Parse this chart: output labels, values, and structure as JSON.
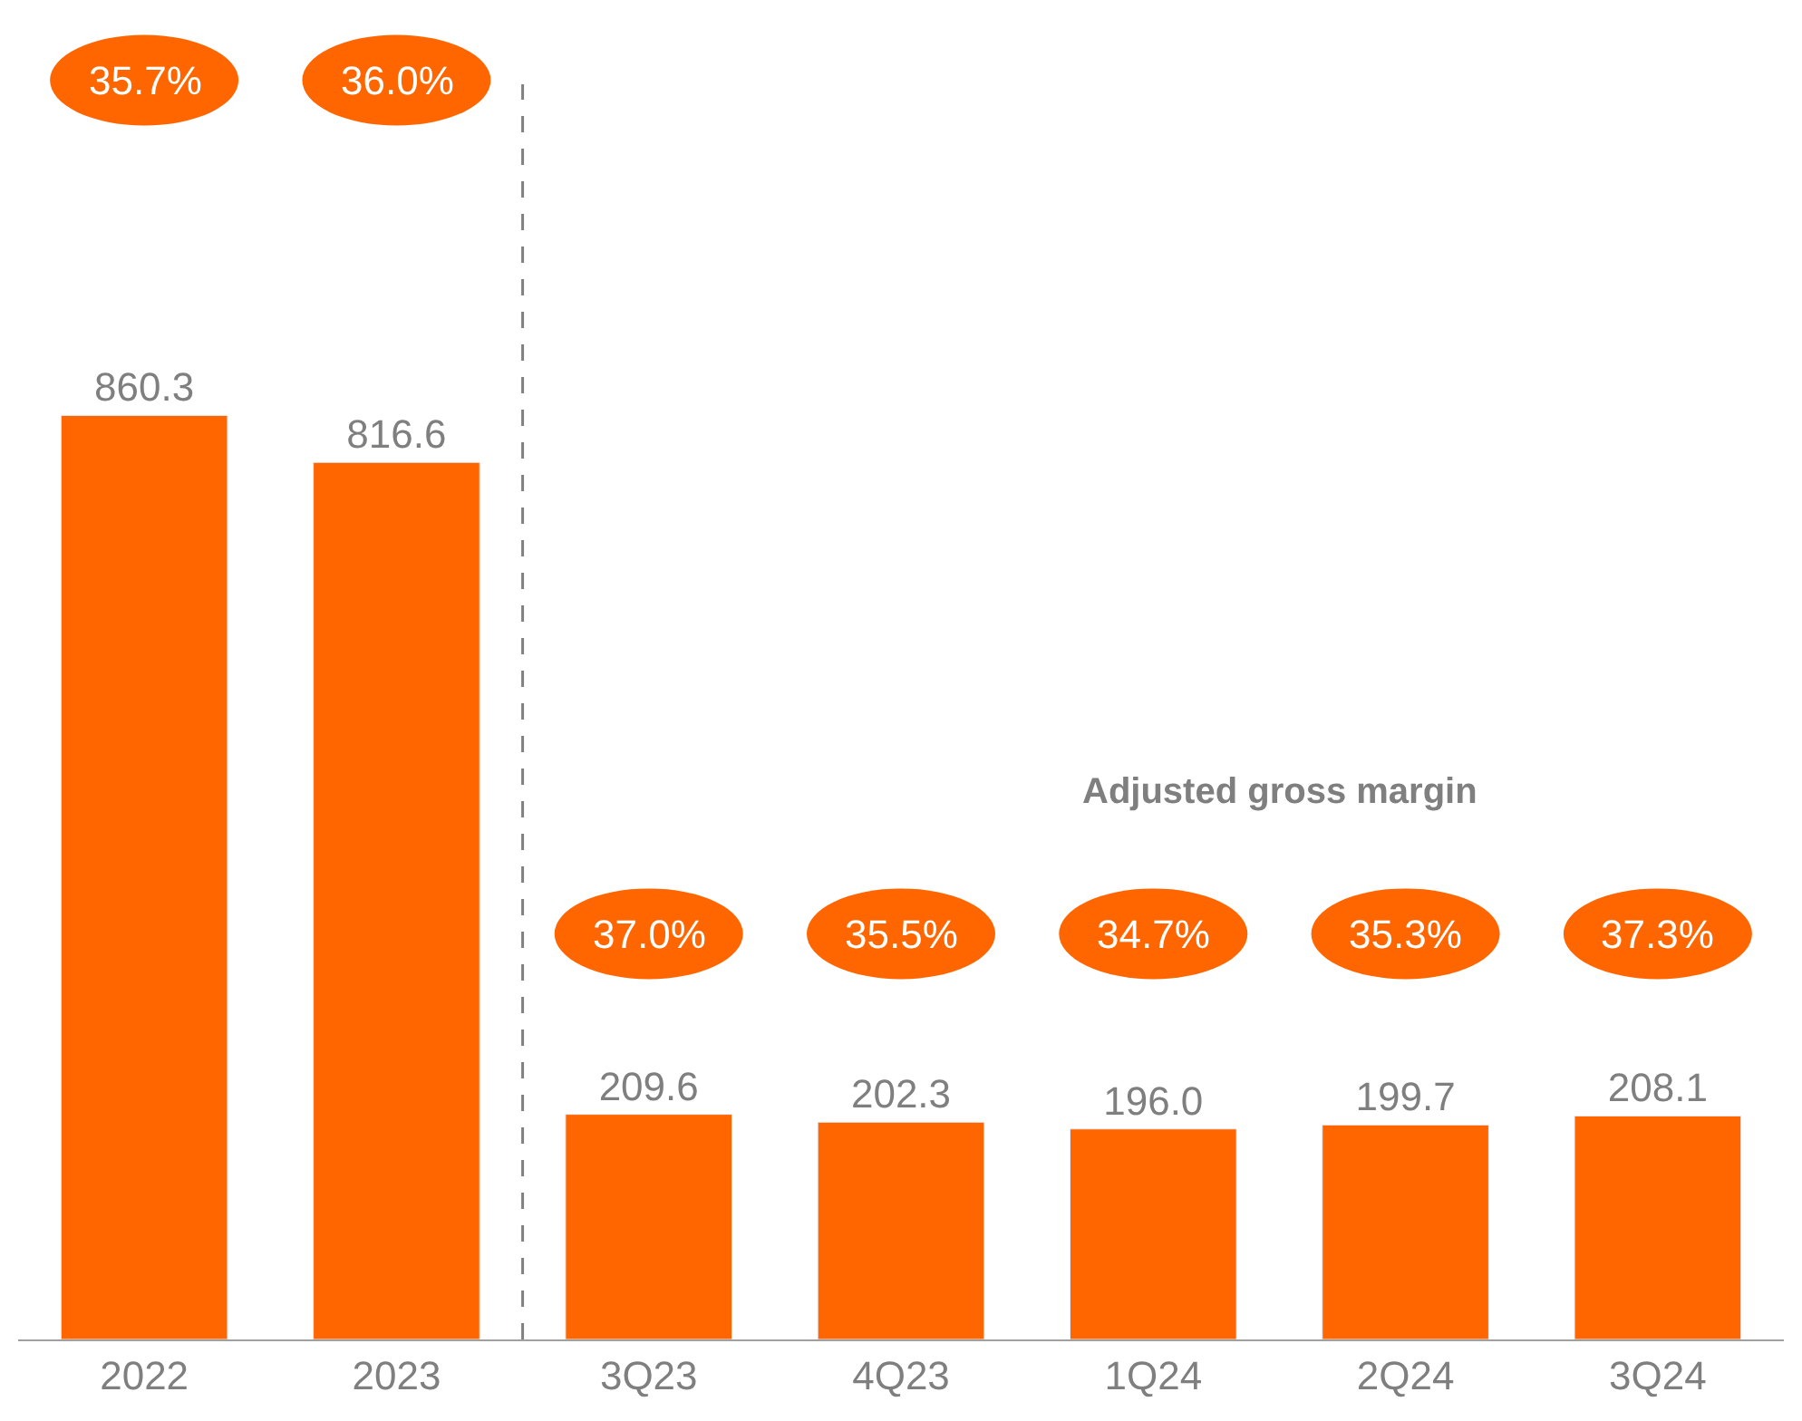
{
  "chart_data": {
    "type": "bar",
    "categories": [
      "2022",
      "2023",
      "3Q23",
      "4Q23",
      "1Q24",
      "2Q24",
      "3Q24"
    ],
    "values": [
      860.3,
      816.6,
      209.6,
      202.3,
      196.0,
      199.7,
      208.1
    ],
    "value_labels": [
      "860.3",
      "816.6",
      "209.6",
      "202.3",
      "196.0",
      "199.7",
      "208.1"
    ],
    "color": "#ff6600",
    "tick_labels": "x",
    "legend": false,
    "annotations": [
      "35.7%",
      "36.0%",
      "Adjusted gross margin",
      "37.0%",
      "35.5%",
      "34.7%",
      "35.3%",
      "37.3%"
    ]
  }
}
